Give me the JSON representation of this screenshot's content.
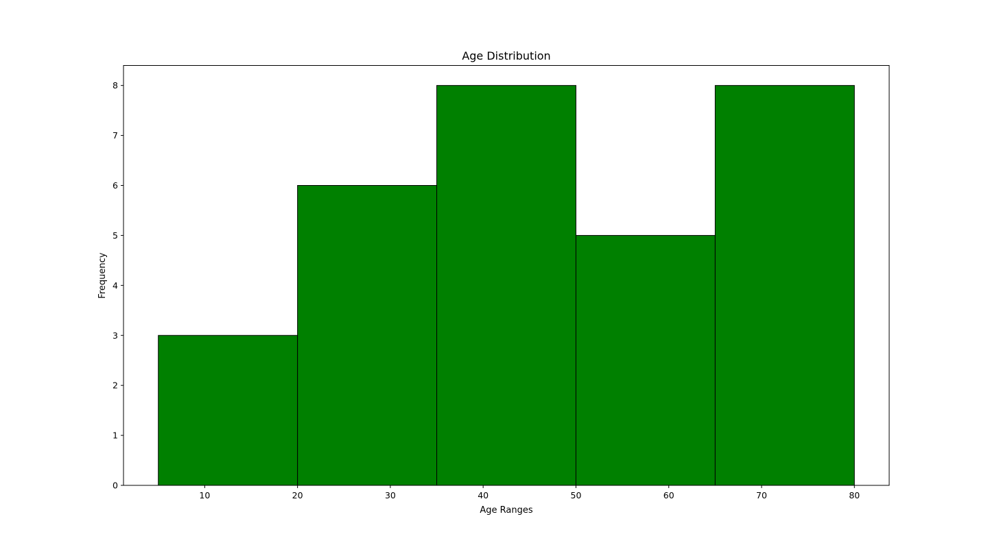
{
  "chart_data": {
    "type": "bar",
    "title": "Age Distribution",
    "xlabel": "Age Ranges",
    "ylabel": "Frequency",
    "bins": [
      {
        "start": 5,
        "end": 20,
        "value": 3
      },
      {
        "start": 20,
        "end": 35,
        "value": 6
      },
      {
        "start": 35,
        "end": 50,
        "value": 8
      },
      {
        "start": 50,
        "end": 65,
        "value": 5
      },
      {
        "start": 65,
        "end": 80,
        "value": 8
      }
    ],
    "xticks": [
      10,
      20,
      30,
      40,
      50,
      60,
      70,
      80
    ],
    "yticks": [
      0,
      1,
      2,
      3,
      4,
      5,
      6,
      7,
      8
    ],
    "xlim": [
      1.25,
      83.75
    ],
    "ylim": [
      0,
      8.4
    ],
    "bar_color": "#008000",
    "edge_color": "#000000",
    "grid": false,
    "legend": "none"
  }
}
